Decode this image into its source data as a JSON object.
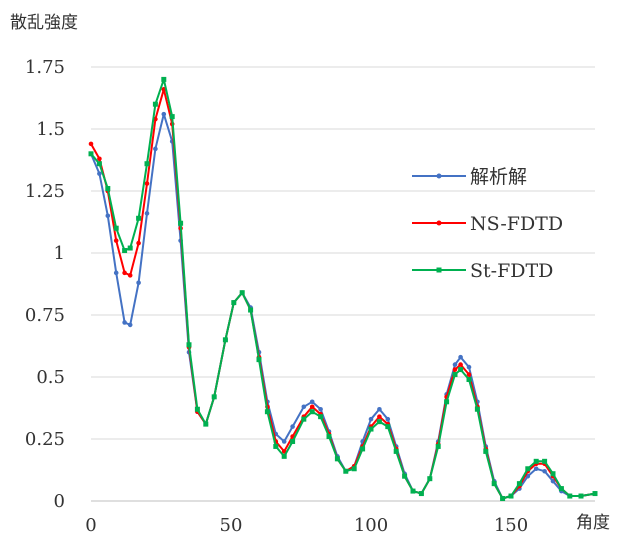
{
  "chart_data": {
    "type": "line",
    "ylabel": "散乱強度",
    "xlabel": "角度",
    "xlim": [
      0,
      180
    ],
    "ylim": [
      0,
      1.75
    ],
    "x_ticks": [
      "0",
      "50",
      "100",
      "150"
    ],
    "y_ticks": [
      "0",
      "0.25",
      "0.5",
      "0.75",
      "1",
      "1.25",
      "1.5",
      "1.75"
    ],
    "grid": "horizontal",
    "legend_position": "right",
    "series": [
      {
        "name": "解析解",
        "color": "#4472C4",
        "points": [
          [
            0,
            1.4
          ],
          [
            3,
            1.32
          ],
          [
            6,
            1.15
          ],
          [
            9,
            0.92
          ],
          [
            12,
            0.72
          ],
          [
            14,
            0.71
          ],
          [
            17,
            0.88
          ],
          [
            20,
            1.16
          ],
          [
            23,
            1.42
          ],
          [
            26,
            1.56
          ],
          [
            29,
            1.45
          ],
          [
            32,
            1.05
          ],
          [
            35,
            0.6
          ],
          [
            38,
            0.36
          ],
          [
            41,
            0.31
          ],
          [
            44,
            0.42
          ],
          [
            48,
            0.65
          ],
          [
            51,
            0.8
          ],
          [
            54,
            0.84
          ],
          [
            57,
            0.78
          ],
          [
            60,
            0.6
          ],
          [
            63,
            0.4
          ],
          [
            66,
            0.27
          ],
          [
            69,
            0.24
          ],
          [
            72,
            0.3
          ],
          [
            76,
            0.38
          ],
          [
            79,
            0.4
          ],
          [
            82,
            0.37
          ],
          [
            85,
            0.28
          ],
          [
            88,
            0.18
          ],
          [
            91,
            0.12
          ],
          [
            94,
            0.14
          ],
          [
            97,
            0.24
          ],
          [
            100,
            0.33
          ],
          [
            103,
            0.37
          ],
          [
            106,
            0.33
          ],
          [
            109,
            0.22
          ],
          [
            112,
            0.11
          ],
          [
            115,
            0.04
          ],
          [
            118,
            0.03
          ],
          [
            121,
            0.09
          ],
          [
            124,
            0.24
          ],
          [
            127,
            0.43
          ],
          [
            130,
            0.55
          ],
          [
            132,
            0.58
          ],
          [
            135,
            0.54
          ],
          [
            138,
            0.4
          ],
          [
            141,
            0.22
          ],
          [
            144,
            0.08
          ],
          [
            147,
            0.01
          ],
          [
            150,
            0.02
          ],
          [
            153,
            0.05
          ],
          [
            156,
            0.1
          ],
          [
            159,
            0.13
          ],
          [
            162,
            0.12
          ],
          [
            165,
            0.08
          ],
          [
            168,
            0.04
          ],
          [
            171,
            0.02
          ],
          [
            175,
            0.02
          ],
          [
            180,
            0.03
          ]
        ]
      },
      {
        "name": "NS-FDTD",
        "color": "#FF0000",
        "points": [
          [
            0,
            1.44
          ],
          [
            3,
            1.38
          ],
          [
            6,
            1.25
          ],
          [
            9,
            1.05
          ],
          [
            12,
            0.92
          ],
          [
            14,
            0.91
          ],
          [
            17,
            1.04
          ],
          [
            20,
            1.28
          ],
          [
            23,
            1.54
          ],
          [
            26,
            1.66
          ],
          [
            29,
            1.52
          ],
          [
            32,
            1.1
          ],
          [
            35,
            0.62
          ],
          [
            38,
            0.36
          ],
          [
            41,
            0.31
          ],
          [
            44,
            0.42
          ],
          [
            48,
            0.65
          ],
          [
            51,
            0.8
          ],
          [
            54,
            0.84
          ],
          [
            57,
            0.77
          ],
          [
            60,
            0.58
          ],
          [
            63,
            0.38
          ],
          [
            66,
            0.24
          ],
          [
            69,
            0.2
          ],
          [
            72,
            0.26
          ],
          [
            76,
            0.34
          ],
          [
            79,
            0.38
          ],
          [
            82,
            0.35
          ],
          [
            85,
            0.27
          ],
          [
            88,
            0.17
          ],
          [
            91,
            0.12
          ],
          [
            94,
            0.14
          ],
          [
            97,
            0.22
          ],
          [
            100,
            0.3
          ],
          [
            103,
            0.34
          ],
          [
            106,
            0.31
          ],
          [
            109,
            0.21
          ],
          [
            112,
            0.1
          ],
          [
            115,
            0.04
          ],
          [
            118,
            0.03
          ],
          [
            121,
            0.09
          ],
          [
            124,
            0.23
          ],
          [
            127,
            0.42
          ],
          [
            130,
            0.53
          ],
          [
            132,
            0.55
          ],
          [
            135,
            0.51
          ],
          [
            138,
            0.38
          ],
          [
            141,
            0.21
          ],
          [
            144,
            0.07
          ],
          [
            147,
            0.01
          ],
          [
            150,
            0.02
          ],
          [
            153,
            0.06
          ],
          [
            156,
            0.12
          ],
          [
            159,
            0.15
          ],
          [
            162,
            0.15
          ],
          [
            165,
            0.1
          ],
          [
            168,
            0.05
          ],
          [
            171,
            0.02
          ],
          [
            175,
            0.02
          ],
          [
            180,
            0.03
          ]
        ]
      },
      {
        "name": "St-FDTD",
        "color": "#00B050",
        "points": [
          [
            0,
            1.4
          ],
          [
            3,
            1.36
          ],
          [
            6,
            1.26
          ],
          [
            9,
            1.1
          ],
          [
            12,
            1.01
          ],
          [
            14,
            1.02
          ],
          [
            17,
            1.14
          ],
          [
            20,
            1.36
          ],
          [
            23,
            1.6
          ],
          [
            26,
            1.7
          ],
          [
            29,
            1.55
          ],
          [
            32,
            1.12
          ],
          [
            35,
            0.63
          ],
          [
            38,
            0.37
          ],
          [
            41,
            0.31
          ],
          [
            44,
            0.42
          ],
          [
            48,
            0.65
          ],
          [
            51,
            0.8
          ],
          [
            54,
            0.84
          ],
          [
            57,
            0.77
          ],
          [
            60,
            0.57
          ],
          [
            63,
            0.36
          ],
          [
            66,
            0.22
          ],
          [
            69,
            0.18
          ],
          [
            72,
            0.24
          ],
          [
            76,
            0.33
          ],
          [
            79,
            0.36
          ],
          [
            82,
            0.34
          ],
          [
            85,
            0.26
          ],
          [
            88,
            0.17
          ],
          [
            91,
            0.12
          ],
          [
            94,
            0.13
          ],
          [
            97,
            0.21
          ],
          [
            100,
            0.29
          ],
          [
            103,
            0.32
          ],
          [
            106,
            0.3
          ],
          [
            109,
            0.2
          ],
          [
            112,
            0.1
          ],
          [
            115,
            0.04
          ],
          [
            118,
            0.03
          ],
          [
            121,
            0.09
          ],
          [
            124,
            0.22
          ],
          [
            127,
            0.4
          ],
          [
            130,
            0.51
          ],
          [
            132,
            0.53
          ],
          [
            135,
            0.49
          ],
          [
            138,
            0.37
          ],
          [
            141,
            0.2
          ],
          [
            144,
            0.07
          ],
          [
            147,
            0.01
          ],
          [
            150,
            0.02
          ],
          [
            153,
            0.07
          ],
          [
            156,
            0.13
          ],
          [
            159,
            0.16
          ],
          [
            162,
            0.16
          ],
          [
            165,
            0.11
          ],
          [
            168,
            0.05
          ],
          [
            171,
            0.02
          ],
          [
            175,
            0.02
          ],
          [
            180,
            0.03
          ]
        ]
      }
    ]
  }
}
